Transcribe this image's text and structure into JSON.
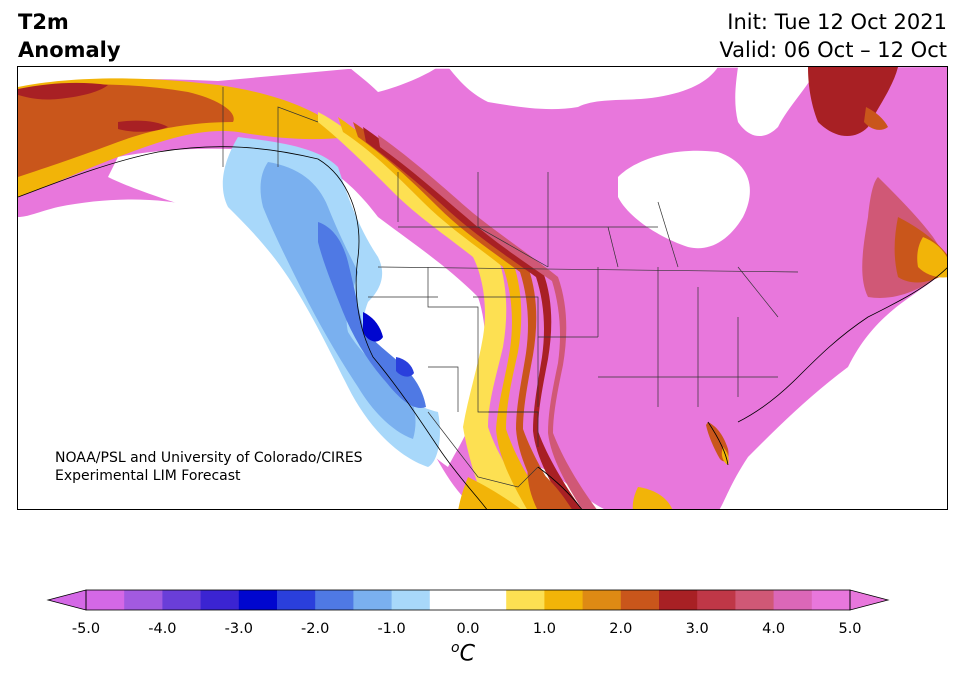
{
  "title": {
    "left_line1": "T2m",
    "left_line2": "Anomaly",
    "right_line1": "Init: Tue 12 Oct 2021",
    "right_line2": "Valid: 06 Oct – 12 Oct"
  },
  "credit": {
    "line1": "NOAA/PSL and University of Colorado/CIRES",
    "line2": "Experimental LIM Forecast"
  },
  "colorbar": {
    "unit_sup": "o",
    "unit_text": "C",
    "tick_labels": [
      "-5.0",
      "-4.0",
      "-3.0",
      "-2.0",
      "-1.0",
      "0.0",
      "1.0",
      "2.0",
      "3.0",
      "4.0",
      "5.0"
    ],
    "colors": [
      "#d468e6",
      "#a25ae0",
      "#6a3ed8",
      "#3b24d2",
      "#0006cf",
      "#2a3fdc",
      "#4f79e4",
      "#7ab0ef",
      "#a8d8fa",
      "#ffffff",
      "#ffffff",
      "#fde052",
      "#f2b408",
      "#de8a14",
      "#c9561b",
      "#a82024",
      "#bf3747",
      "#d05876",
      "#db67b8",
      "#e877dc"
    ],
    "extend_low_color": "#d468e6",
    "extend_high_color": "#e877dc"
  },
  "map": {
    "region": "North America",
    "colors": {
      "anom_pos5": "#e877dc",
      "anom_pos4": "#d05876",
      "anom_pos3": "#a82024",
      "anom_pos2": "#c9561b",
      "anom_pos1": "#f2b408",
      "anom_pos05": "#fde052",
      "anom_neg05": "#a8d8fa",
      "anom_neg1": "#7ab0ef",
      "anom_neg2": "#4f79e4",
      "anom_neg3": "#0006cf",
      "ocean": "#ffffff"
    }
  }
}
